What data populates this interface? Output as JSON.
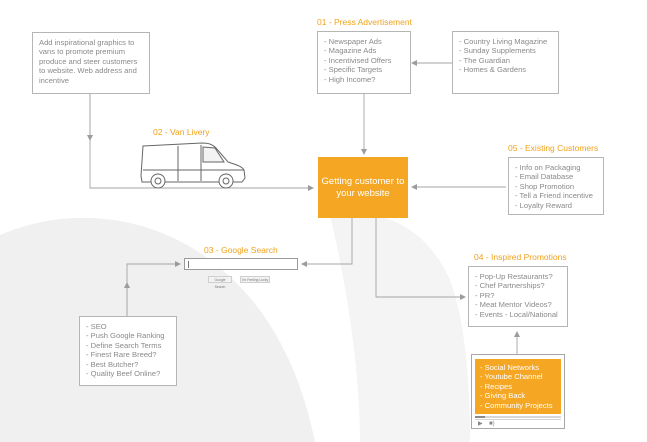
{
  "center": {
    "label": "Getting customer to your website"
  },
  "sections": {
    "press": "01 - Press Advertisement",
    "van": "02 - Van Livery",
    "google": "03 - Google Search",
    "promotions": "04 - Inspired Promotions",
    "existing": "05 - Existing Customers"
  },
  "boxes": {
    "press_ads": [
      "Newspaper Ads",
      "Magazine Ads",
      "Incentivised Offers",
      "Specific Targets",
      "High Income?"
    ],
    "publications": [
      "Country Living Magazine",
      "Sunday Supplements",
      "The Guardian",
      "Homes & Gardens"
    ],
    "van_text": "Add inspirational graphics to vans to promote premium produce and steer customers to website. Web address and incentive",
    "existing": [
      "Info on Packaging",
      "Email Database",
      "Shop Promotion",
      "Tell a Friend incentive",
      "Loyalty Reward"
    ],
    "promotions": [
      "Pop-Up Restaurants?",
      "Chef Partnerships?",
      "PR?",
      "Meat Mentor Videos?",
      "Events - Local/National"
    ],
    "seo": [
      "SEO",
      "Push Google Ranking",
      "Define Search Terms",
      "Finest Rare Breed?",
      "Best Butcher?",
      "Quality Beef Online?"
    ],
    "video": [
      "Social Networks",
      "Youtube Channel",
      "Recipes",
      "Giving Back",
      "Community Projects"
    ]
  },
  "search": {
    "button1": "Google Search",
    "button2": "I'm Feeling Lucky"
  },
  "video_player": {
    "progress": 0.12
  },
  "colors": {
    "accent": "#f5a623",
    "title": "#f0a21b",
    "line": "#a0a0a0",
    "text": "#8a8a8a"
  }
}
